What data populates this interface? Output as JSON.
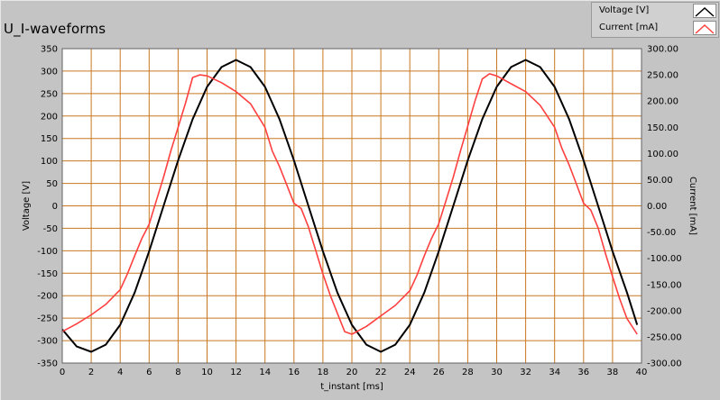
{
  "title": "U_I-waveforms",
  "legend": [
    {
      "label": "Voltage [V]",
      "color": "#000000"
    },
    {
      "label": "Current [mA]",
      "color": "#ff4040"
    }
  ],
  "chart_data": {
    "type": "line",
    "xlabel": "t_instant [ms]",
    "ylabel": "Voltage [V]",
    "y2label": "Current [mA]",
    "xlim": [
      0,
      40
    ],
    "ylim": [
      -350,
      350
    ],
    "y2lim": [
      -300,
      300
    ],
    "xticks": [
      "0",
      "2",
      "4",
      "6",
      "8",
      "10",
      "12",
      "14",
      "16",
      "18",
      "20",
      "22",
      "24",
      "26",
      "28",
      "30",
      "32",
      "34",
      "36",
      "38",
      "40"
    ],
    "yticks": [
      "350",
      "300",
      "250",
      "200",
      "150",
      "100",
      "50",
      "0",
      "-50",
      "-100",
      "-150",
      "-200",
      "-250",
      "-300",
      "-350"
    ],
    "y2ticks": [
      "300.00",
      "250.00",
      "200.00",
      "150.00",
      "100.00",
      "50.00",
      "0.00",
      "-50.00",
      "-100.00",
      "-150.00",
      "-200.00",
      "-250.00",
      "-300.00"
    ],
    "grid": true,
    "background": "#ffffff",
    "grid_color": "#c87820",
    "series": [
      {
        "name": "Voltage [V]",
        "axis": "left",
        "color": "#000000",
        "x": [
          0,
          1,
          2,
          3,
          4,
          5,
          6,
          7,
          8,
          9,
          10,
          11,
          12,
          13,
          14,
          15,
          16,
          17,
          18,
          19,
          20,
          21,
          22,
          23,
          24,
          25,
          26,
          27,
          28,
          29,
          30,
          31,
          32,
          33,
          34,
          35,
          36,
          37,
          38,
          39,
          39.7
        ],
        "y": [
          -275,
          -313,
          -325,
          -309,
          -265,
          -193,
          -101,
          0,
          101,
          193,
          265,
          309,
          325,
          309,
          265,
          193,
          101,
          0,
          -101,
          -193,
          -265,
          -309,
          -325,
          -309,
          -265,
          -193,
          -101,
          0,
          101,
          193,
          265,
          309,
          325,
          309,
          265,
          193,
          101,
          0,
          -101,
          -193,
          -265
        ]
      },
      {
        "name": "Current [mA]",
        "axis": "right",
        "color": "#ff4040",
        "x": [
          0,
          1,
          2,
          3,
          4,
          4.5,
          5,
          5.5,
          6,
          6.5,
          7,
          7.5,
          8,
          8.5,
          9,
          9.5,
          10,
          11,
          12,
          13,
          14,
          14.5,
          15,
          15.5,
          16,
          16.5,
          17,
          17.5,
          18,
          18.5,
          19,
          19.5,
          20,
          21,
          22,
          23,
          24,
          24.5,
          25,
          25.5,
          26,
          26.5,
          27,
          27.5,
          28,
          28.5,
          29,
          29.5,
          30,
          31,
          32,
          33,
          34,
          34.5,
          35,
          35.5,
          36,
          36.5,
          37,
          37.5,
          38,
          38.5,
          39,
          39.7
        ],
        "y": [
          -240,
          -225,
          -208,
          -188,
          -160,
          -130,
          -95,
          -62,
          -35,
          10,
          55,
          105,
          150,
          195,
          245,
          250,
          248,
          235,
          218,
          195,
          150,
          105,
          75,
          40,
          5,
          -5,
          -40,
          -85,
          -130,
          -170,
          -205,
          -240,
          -245,
          -230,
          -210,
          -190,
          -162,
          -132,
          -95,
          -62,
          -34,
          10,
          55,
          105,
          152,
          200,
          242,
          252,
          248,
          233,
          218,
          192,
          150,
          110,
          78,
          42,
          5,
          -8,
          -42,
          -90,
          -135,
          -178,
          -215,
          -245
        ]
      }
    ]
  }
}
